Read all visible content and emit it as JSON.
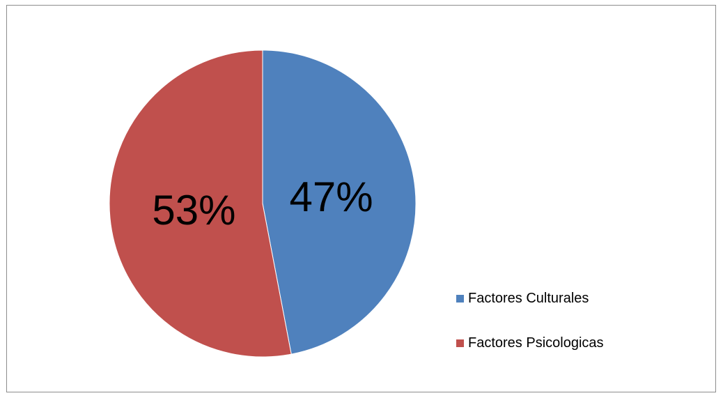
{
  "chart_data": {
    "type": "pie",
    "categories": [
      "Factores Culturales",
      "Factores Psicologicas"
    ],
    "values": [
      47,
      53
    ],
    "labels": [
      "47%",
      "53%"
    ],
    "colors": [
      "#4f81bd",
      "#c0504d"
    ],
    "title": "",
    "legend_position": "bottom-right",
    "start_angle": "top (12 o'clock), clockwise"
  },
  "legend": {
    "items": [
      {
        "label": "Factores Culturales",
        "color": "#4f81bd"
      },
      {
        "label": "Factores Psicologicas",
        "color": "#c0504d"
      }
    ]
  }
}
